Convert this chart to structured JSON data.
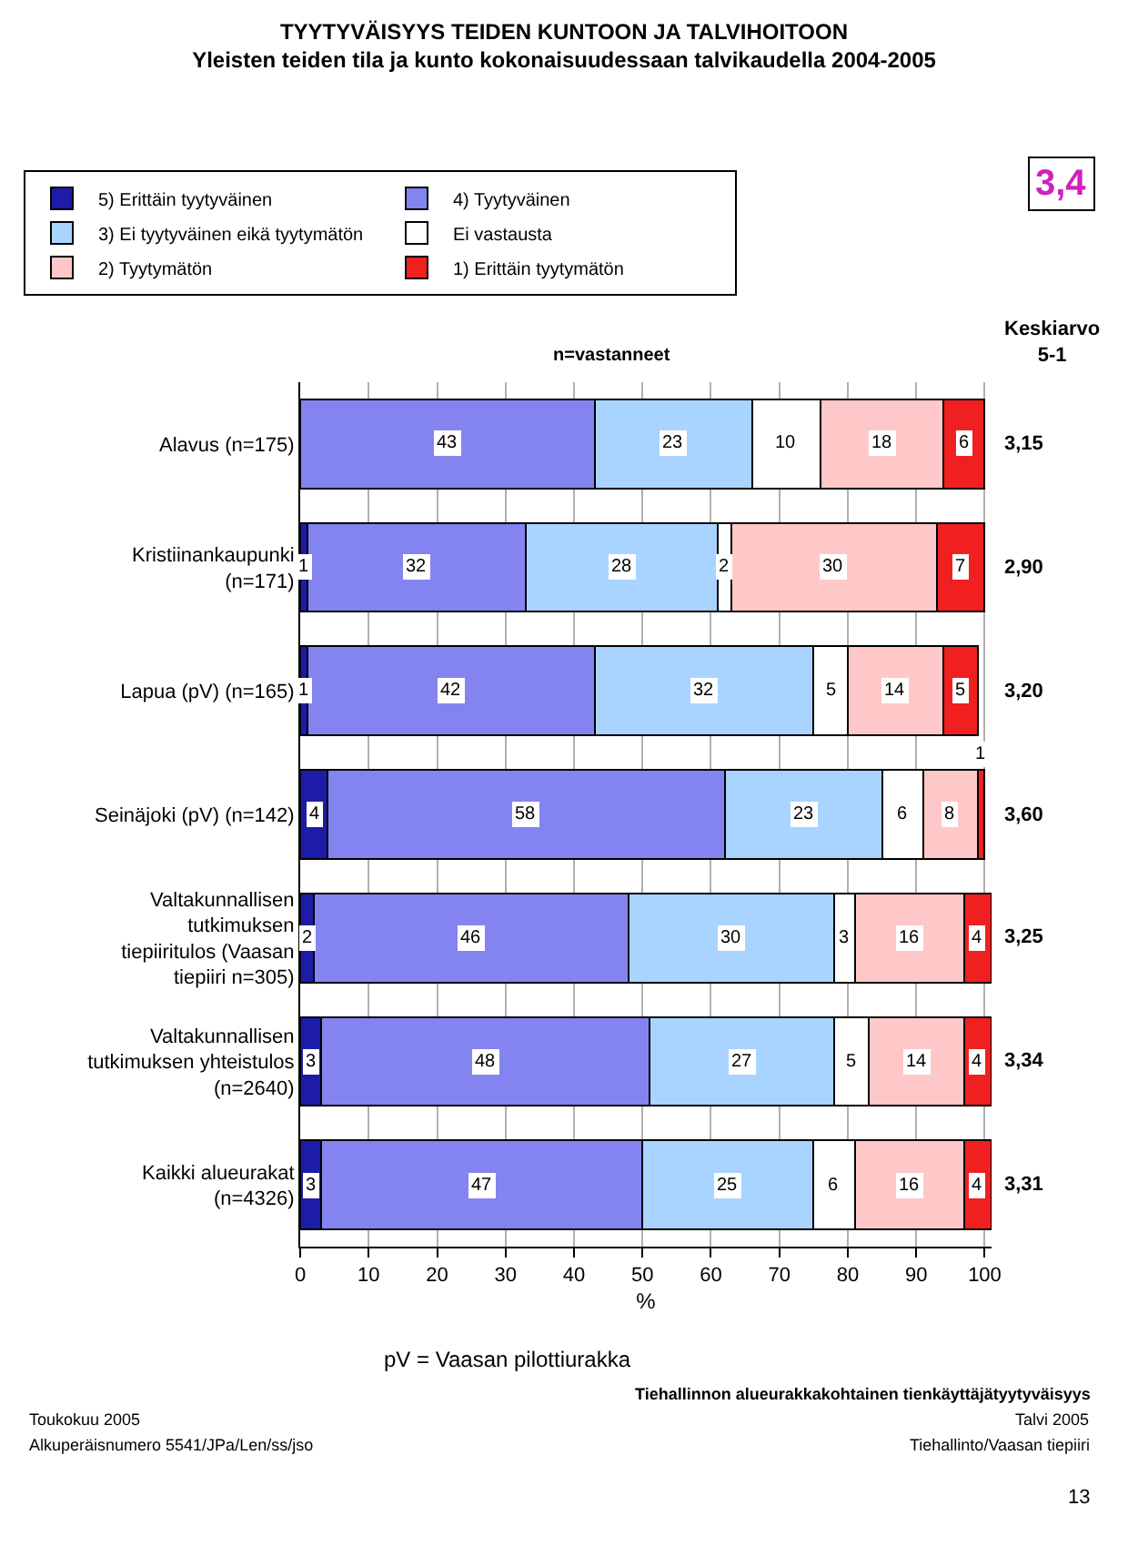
{
  "chart_data": {
    "type": "bar",
    "orientation": "horizontal",
    "stacked": true,
    "title": "TYYTYVÄISYYS TEIDEN KUNTOON JA TALVIHOITOON",
    "subtitle": "Yleisten teiden tila ja kunto kokonaisuudessaan talvikaudella 2004-2005",
    "xlabel": "%",
    "categories": [
      "Alavus (n=175)",
      "Kristiinankaupunki (n=171)",
      "Lapua (pV) (n=165)",
      "Seinäjoki (pV) (n=142)",
      "Valtakunnallisen tutkimuksen tiepiiritulos (Vaasan tiepiiri n=305)",
      "Valtakunnallisen tutkimuksen yhteistulos (n=2640)",
      "Kaikki alueurakat (n=4326)"
    ],
    "series": [
      {
        "name": "5) Erittäin tyytyväinen",
        "color": "#1c1ca8",
        "values": [
          0,
          1,
          1,
          4,
          2,
          3,
          3
        ],
        "value_labels": [
          null,
          "1",
          "1",
          "4",
          "2",
          "3",
          "3"
        ]
      },
      {
        "name": "4) Tyytyväinen",
        "color": "#8484f0",
        "values": [
          43,
          32,
          42,
          58,
          46,
          48,
          47
        ],
        "value_labels": [
          "43",
          "32",
          "42",
          "58",
          "46",
          "48",
          "47"
        ]
      },
      {
        "name": "3) Ei tyytyväinen eikä tyytymätön",
        "color": "#a8d4ff",
        "values": [
          23,
          28,
          32,
          23,
          30,
          27,
          25
        ],
        "value_labels": [
          "23",
          "28",
          "32",
          "23",
          "30",
          "27",
          "25"
        ]
      },
      {
        "name": "Ei vastausta",
        "color": "#ffffff",
        "values": [
          10,
          2,
          5,
          6,
          3,
          5,
          6
        ],
        "value_labels": [
          "10",
          "2",
          "5",
          "6",
          "3",
          "5",
          "6"
        ]
      },
      {
        "name": "2) Tyytymätön",
        "color": "#ffc8c8",
        "values": [
          18,
          30,
          14,
          8,
          16,
          14,
          16
        ],
        "value_labels": [
          "18",
          "30",
          "14",
          "8",
          "16",
          "14",
          "16"
        ]
      },
      {
        "name": "1) Erittäin tyytymätön",
        "color": "#f02020",
        "values": [
          6,
          7,
          5,
          1,
          4,
          4,
          4
        ],
        "value_labels": [
          "6",
          "7",
          "5",
          "1",
          "4",
          "4",
          "4"
        ]
      }
    ],
    "xlim": [
      0,
      101
    ],
    "xticks": [
      0,
      10,
      20,
      30,
      40,
      50,
      60,
      70,
      80,
      90,
      100
    ],
    "grid": "x",
    "legend": "top",
    "annotations": [
      "n=vastanneet",
      "Keskiarvo 5-1",
      "3,15",
      "2,90",
      "3,20",
      "3,60",
      "3,25",
      "3,34",
      "3,31",
      "3,4",
      "pV = Vaasan pilottiurakka",
      "Tiehallinnon alueurakkakohtainen tienkäyttäjätyytyväisyys",
      "Talvi 2005",
      "Tiehallinto/Vaasan tiepiiri",
      "Toukokuu 2005",
      "Alkuperäisnumero 5541/JPa/Len/ss/jso",
      "13"
    ]
  }
}
